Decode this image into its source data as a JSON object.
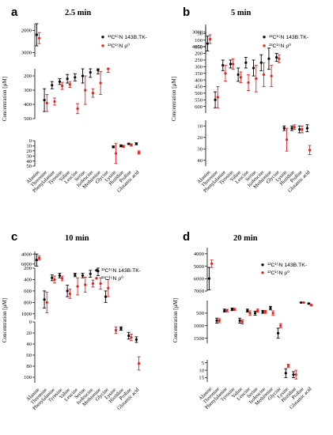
{
  "figure": {
    "background": "#ffffff",
    "colors": {
      "series_a": "#000000",
      "series_b": "#e8211b"
    }
  },
  "chart_data": [
    {
      "type": "scatter",
      "panel": "a",
      "title": "2.5 min",
      "ylabel": "Concentration [µM]",
      "categories": [
        "Alanine",
        "Threonine",
        "Phenylalanine",
        "Tyrosine",
        "Valine",
        "Leucine",
        "Serine",
        "Isoleucine",
        "Methionine",
        "Glycine",
        "Lysine",
        "Histidine",
        "Proline",
        "Glutamic acid"
      ],
      "axis_segments": [
        {
          "ylim": [
            0,
            50
          ],
          "ticks": [
            0,
            10,
            20,
            30,
            40,
            50
          ]
        },
        {
          "ylim": [
            150,
            500
          ],
          "ticks": [
            200,
            300,
            400,
            500
          ]
        },
        {
          "ylim": [
            1700,
            3200
          ],
          "ticks": [
            2000,
            3000
          ]
        }
      ],
      "series": [
        {
          "name": "¹³C¹⁵N 143B.TK-",
          "color": "#000000",
          "values": [
            2200,
            370,
            265,
            240,
            220,
            210,
            200,
            175,
            160,
            null,
            12,
            10,
            6,
            6
          ],
          "err": [
            500,
            80,
            25,
            20,
            30,
            25,
            50,
            35,
            25,
            null,
            2,
            2,
            1,
            2
          ]
        },
        {
          "name": "¹³C¹⁵N ρ⁰",
          "color": "#e8211b",
          "values": [
            2350,
            390,
            380,
            270,
            260,
            430,
            300,
            320,
            250,
            150,
            25,
            11,
            8,
            23
          ],
          "err": [
            250,
            60,
            25,
            25,
            20,
            35,
            100,
            30,
            80,
            25,
            20,
            2,
            2,
            3
          ]
        }
      ]
    },
    {
      "type": "scatter",
      "panel": "b",
      "title": "5 min",
      "ylabel": "Concentration [µM]",
      "categories": [
        "Alanine",
        "Threonine",
        "Phenylalanine",
        "Tyrosine",
        "Valine",
        "Leucine",
        "Serine",
        "Isoleucine",
        "Methionine",
        "Glycine",
        "Lysine",
        "Histidine",
        "Proline",
        "Glutamic acid"
      ],
      "axis_segments": [
        {
          "ylim": [
            5,
            45
          ],
          "ticks": [
            10,
            20,
            30,
            40
          ]
        },
        {
          "ylim": [
            0,
            650
          ],
          "ticks": [
            50,
            100,
            150,
            200,
            250,
            300,
            350,
            400,
            450,
            500,
            550,
            600
          ]
        },
        {
          "ylim": [
            2500,
            4500
          ],
          "ticks": [
            3000,
            4000
          ]
        }
      ],
      "series": [
        {
          "name": "¹³C¹⁵N 143B.TK-",
          "color": "#000000",
          "values": [
            3800,
            550,
            290,
            280,
            360,
            270,
            310,
            270,
            240,
            230,
            12,
            12,
            13,
            12
          ],
          "err": [
            500,
            60,
            40,
            30,
            50,
            40,
            60,
            60,
            80,
            30,
            2,
            2,
            3,
            3
          ]
        },
        {
          "name": "¹³C¹⁵N ρ⁰",
          "color": "#e8211b",
          "values": [
            3500,
            530,
            350,
            280,
            380,
            420,
            390,
            360,
            370,
            240,
            22,
            11,
            13,
            31
          ],
          "err": [
            300,
            80,
            60,
            40,
            40,
            60,
            100,
            90,
            80,
            30,
            10,
            2,
            3,
            4
          ]
        }
      ]
    },
    {
      "type": "scatter",
      "panel": "c",
      "title": "10 min",
      "ylabel": "Concentration [µM]",
      "categories": [
        "Alanine",
        "Threonine",
        "Phenylalanine",
        "Tyrosine",
        "Valine",
        "Leucine",
        "Serine",
        "Isoleucine",
        "Methionine",
        "Glycine",
        "Lysine",
        "Histidine",
        "Proline",
        "Glutamic acid"
      ],
      "axis_segments": [
        {
          "ylim": [
            0,
            110
          ],
          "ticks": [
            0,
            20,
            40,
            60,
            80,
            100
          ]
        },
        {
          "ylim": [
            200,
            1100
          ],
          "ticks": [
            200,
            400,
            600,
            800,
            1000
          ]
        },
        {
          "ylim": [
            3500,
            6500
          ],
          "ticks": [
            4000,
            6000
          ]
        }
      ],
      "series": [
        {
          "name": "¹³C¹⁵N 143B.TK-",
          "color": "#000000",
          "values": [
            5200,
            750,
            370,
            330,
            600,
            320,
            330,
            300,
            250,
            700,
            null,
            12,
            25,
            32
          ],
          "err": [
            1200,
            150,
            50,
            40,
            100,
            30,
            40,
            60,
            80,
            100,
            null,
            3,
            6,
            5
          ]
        },
        {
          "name": "¹³C¹⁵N ρ⁰",
          "color": "#e8211b",
          "values": [
            4800,
            800,
            400,
            380,
            650,
            520,
            490,
            470,
            470,
            550,
            15,
            null,
            28,
            75
          ],
          "err": [
            400,
            180,
            60,
            40,
            80,
            150,
            130,
            60,
            100,
            150,
            6,
            null,
            6,
            12
          ]
        }
      ]
    },
    {
      "type": "scatter",
      "panel": "d",
      "title": "20 min",
      "ylabel": "Concentration [µM]",
      "categories": [
        "Alanine",
        "Threonine",
        "Phenylalanine",
        "Tyrosine",
        "Valine",
        "Leucine",
        "Serine",
        "Isoleucine",
        "Methionine",
        "Glycine",
        "Lysine",
        "Histidine",
        "Proline",
        "Glutamic acid"
      ],
      "axis_segments": [
        {
          "ylim": [
            3,
            18
          ],
          "ticks": [
            5,
            10,
            15
          ]
        },
        {
          "ylim": [
            0,
            1700
          ],
          "ticks": [
            500,
            1000,
            1500
          ]
        },
        {
          "ylim": [
            3500,
            7000
          ],
          "ticks": [
            4000,
            5000,
            6000,
            7000
          ]
        }
      ],
      "series": [
        {
          "name": "¹³C¹⁵N 143B.TK-",
          "color": "#000000",
          "values": [
            6000,
            800,
            400,
            350,
            800,
            400,
            500,
            450,
            300,
            1300,
            12,
            13,
            80,
            120
          ],
          "err": [
            900,
            100,
            60,
            50,
            100,
            60,
            80,
            60,
            70,
            200,
            3,
            2,
            10,
            20
          ]
        },
        {
          "name": "¹³C¹⁵N ρ⁰",
          "color": "#e8211b",
          "values": [
            4800,
            800,
            400,
            350,
            850,
            500,
            400,
            450,
            500,
            1000,
            7,
            13,
            80,
            180
          ],
          "err": [
            300,
            80,
            50,
            40,
            80,
            90,
            60,
            60,
            90,
            80,
            1,
            3,
            10,
            20
          ]
        }
      ]
    }
  ]
}
